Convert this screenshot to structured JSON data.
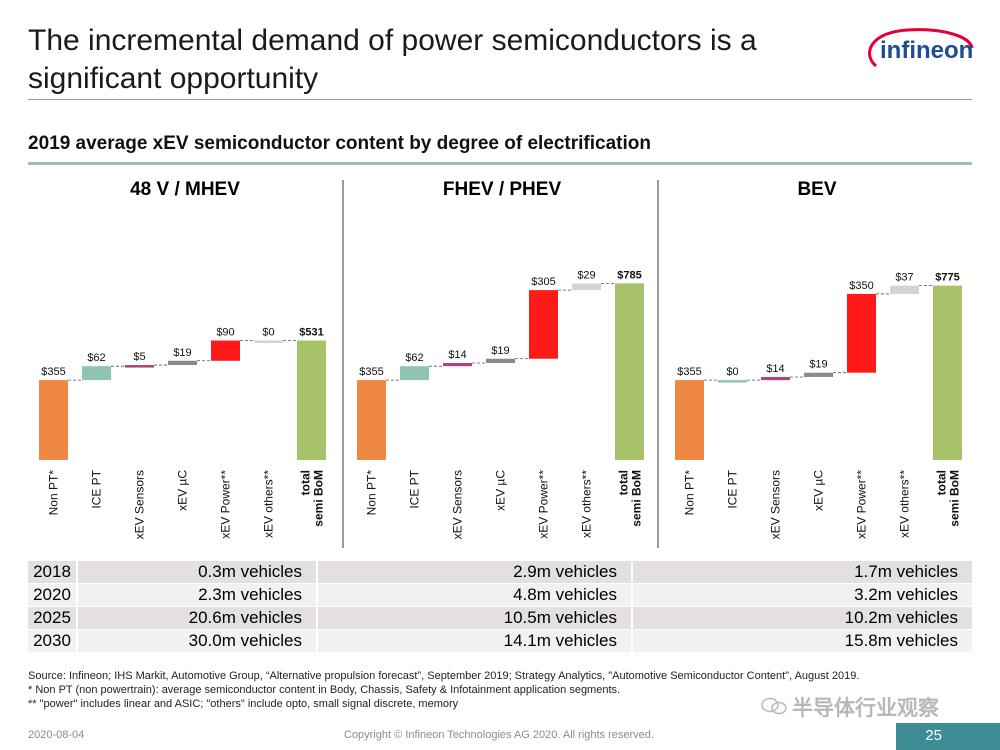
{
  "title": "The incremental demand of power semiconductors is a significant opportunity",
  "logo_text": "infineon",
  "subtitle": "2019 average xEV semiconductor content by degree of electrification",
  "colors": {
    "nonpt": "#ef8843",
    "ice": "#8fc4b4",
    "sensors": "#b3427a",
    "uc": "#8a8a8a",
    "power": "#ff1a1a",
    "others": "#d3d3d3",
    "total": "#a8c26a"
  },
  "chart_data": [
    {
      "type": "bar",
      "subtype": "waterfall",
      "title": "48 V / MHEV",
      "categories": [
        "Non PT*",
        "ICE PT",
        "xEV Sensors",
        "xEV µC",
        "xEV Power**",
        "xEV others**",
        "total semi BoM"
      ],
      "values": [
        355,
        62,
        5,
        19,
        90,
        0,
        531
      ],
      "labels": [
        "$355",
        "$62",
        "$5",
        "$19",
        "$90",
        "$0",
        "$531"
      ],
      "ylim": [
        0,
        800
      ]
    },
    {
      "type": "bar",
      "subtype": "waterfall",
      "title": "FHEV / PHEV",
      "categories": [
        "Non PT*",
        "ICE PT",
        "xEV Sensors",
        "xEV µC",
        "xEV Power**",
        "xEV others**",
        "total semi BoM"
      ],
      "values": [
        355,
        62,
        14,
        19,
        305,
        29,
        785
      ],
      "labels": [
        "$355",
        "$62",
        "$14",
        "$19",
        "$305",
        "$29",
        "$785"
      ],
      "ylim": [
        0,
        800
      ]
    },
    {
      "type": "bar",
      "subtype": "waterfall",
      "title": "BEV",
      "categories": [
        "Non PT*",
        "ICE PT",
        "xEV Sensors",
        "xEV µC",
        "xEV Power**",
        "xEV others**",
        "total semi BoM"
      ],
      "values": [
        355,
        0,
        14,
        19,
        350,
        37,
        775
      ],
      "labels": [
        "$355",
        "$0",
        "$14",
        "$19",
        "$350",
        "$37",
        "$775"
      ],
      "ylim": [
        0,
        800
      ]
    }
  ],
  "vehicles_table": [
    {
      "year": "2018",
      "mhev": "0.3m vehicles",
      "phev": "2.9m vehicles",
      "bev": "1.7m vehicles"
    },
    {
      "year": "2020",
      "mhev": "2.3m vehicles",
      "phev": "4.8m vehicles",
      "bev": "3.2m vehicles"
    },
    {
      "year": "2025",
      "mhev": "20.6m vehicles",
      "phev": "10.5m vehicles",
      "bev": "10.2m vehicles"
    },
    {
      "year": "2030",
      "mhev": "30.0m vehicles",
      "phev": "14.1m vehicles",
      "bev": "15.8m vehicles"
    }
  ],
  "notes": [
    "Source: Infineon; IHS Markit, Automotive Group, “Alternative propulsion forecast”, September 2019; Strategy Analytics, \"Automotive Semiconductor Content\", August 2019.",
    "* Non PT (non powertrain): average semiconductor content in Body, Chassis, Safety & Infotainment application segments.",
    "** \"power\" includes linear and ASIC; \"others\" include opto, small signal discrete, memory"
  ],
  "watermark": "半导体行业观察",
  "footer": {
    "date": "2020-08-04",
    "copyright": "Copyright © Infineon Technologies AG 2020. All rights reserved.",
    "page": "25"
  }
}
